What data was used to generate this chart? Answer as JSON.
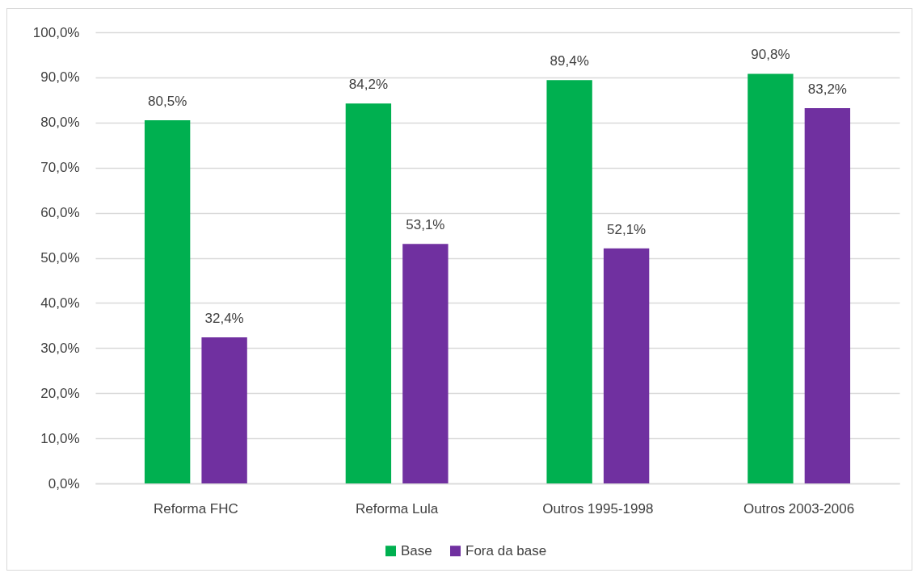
{
  "chart_data": {
    "type": "bar",
    "categories": [
      "Reforma FHC",
      "Reforma Lula",
      "Outros 1995-1998",
      "Outros 2003-2006"
    ],
    "series": [
      {
        "name": "Base",
        "color": "#00b050",
        "values": [
          80.5,
          84.2,
          89.4,
          90.8
        ],
        "value_labels": [
          "80,5%",
          "84,2%",
          "89,4%",
          "90,8%"
        ]
      },
      {
        "name": "Fora da base",
        "color": "#7030a0",
        "values": [
          32.4,
          53.1,
          52.1,
          83.2
        ],
        "value_labels": [
          "32,4%",
          "53,1%",
          "52,1%",
          "83,2%"
        ]
      }
    ],
    "ylim": [
      0,
      100
    ],
    "yticks": [
      {
        "value": 0,
        "label": "0,0%"
      },
      {
        "value": 10,
        "label": "10,0%"
      },
      {
        "value": 20,
        "label": "20,0%"
      },
      {
        "value": 30,
        "label": "30,0%"
      },
      {
        "value": 40,
        "label": "40,0%"
      },
      {
        "value": 50,
        "label": "50,0%"
      },
      {
        "value": 60,
        "label": "60,0%"
      },
      {
        "value": 70,
        "label": "70,0%"
      },
      {
        "value": 80,
        "label": "80,0%"
      },
      {
        "value": 90,
        "label": "90,0%"
      },
      {
        "value": 100,
        "label": "100,0%"
      }
    ],
    "grid": "y",
    "legend": "bottom"
  }
}
